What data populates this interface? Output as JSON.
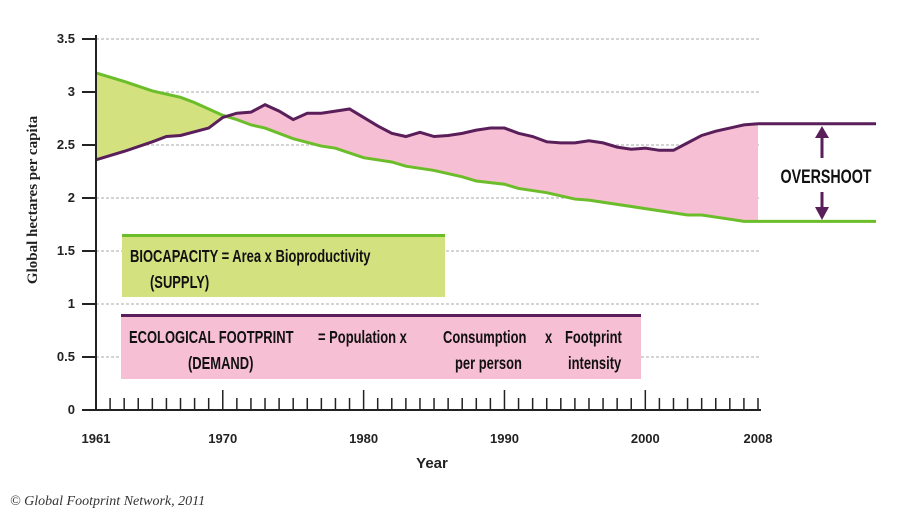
{
  "chart_data": {
    "type": "area",
    "xlabel": "Year",
    "ylabel": "Global hectares per capita",
    "xlim": [
      1961,
      2008
    ],
    "ylim": [
      0,
      3.5
    ],
    "x_tick_labels": [
      "1961",
      "1970",
      "1980",
      "1990",
      "2000",
      "2008"
    ],
    "y_tick_labels": [
      "0",
      "0.5",
      "1",
      "1.5",
      "2",
      "2.5",
      "3",
      "3.5"
    ],
    "grid": true,
    "colors": {
      "biocapacity_line": "#6cbd2a",
      "biocapacity_fill": "#d3e27f",
      "footprint_line": "#5a1f5a",
      "footprint_fill": "#f7bfd3"
    },
    "series": [
      {
        "name": "BIOCAPACITY",
        "x": [
          1961,
          1963,
          1965,
          1967,
          1968,
          1970,
          1971,
          1972,
          1973,
          1975,
          1977,
          1978,
          1980,
          1982,
          1983,
          1985,
          1987,
          1988,
          1990,
          1991,
          1993,
          1995,
          1996,
          1998,
          2000,
          2002,
          2003,
          2004,
          2006,
          2007,
          2008
        ],
        "values": [
          3.18,
          3.1,
          3.01,
          2.95,
          2.9,
          2.78,
          2.74,
          2.69,
          2.66,
          2.56,
          2.49,
          2.47,
          2.38,
          2.34,
          2.3,
          2.26,
          2.2,
          2.16,
          2.13,
          2.09,
          2.05,
          1.99,
          1.98,
          1.94,
          1.9,
          1.86,
          1.84,
          1.84,
          1.8,
          1.78,
          1.78
        ]
      },
      {
        "name": "ECOLOGICAL FOOTPRINT",
        "x": [
          1961,
          1963,
          1965,
          1966,
          1967,
          1969,
          1970,
          1971,
          1972,
          1973,
          1974,
          1975,
          1976,
          1977,
          1978,
          1979,
          1980,
          1981,
          1982,
          1983,
          1984,
          1985,
          1986,
          1987,
          1988,
          1989,
          1990,
          1991,
          1992,
          1993,
          1994,
          1995,
          1996,
          1997,
          1998,
          1999,
          2000,
          2001,
          2002,
          2003,
          2004,
          2005,
          2006,
          2007,
          2008
        ],
        "values": [
          2.36,
          2.44,
          2.53,
          2.58,
          2.59,
          2.66,
          2.76,
          2.8,
          2.81,
          2.88,
          2.82,
          2.74,
          2.8,
          2.8,
          2.82,
          2.84,
          2.76,
          2.68,
          2.61,
          2.58,
          2.62,
          2.58,
          2.59,
          2.61,
          2.64,
          2.66,
          2.66,
          2.61,
          2.58,
          2.53,
          2.52,
          2.52,
          2.54,
          2.52,
          2.48,
          2.46,
          2.47,
          2.45,
          2.45,
          2.52,
          2.59,
          2.63,
          2.66,
          2.69,
          2.7
        ]
      }
    ],
    "annotations": {
      "overshoot": "OVERSHOOT",
      "biocapacity_box": {
        "line1": "BIOCAPACITY = Area x Bioproductivity",
        "line2": "(SUPPLY)"
      },
      "footprint_box": {
        "line1a": "ECOLOGICAL FOOTPRINT",
        "eq": "= Population x",
        "line1b": "Consumption",
        "x2": "x",
        "line1c": "Footprint",
        "line2a": "(DEMAND)",
        "line2b": "per person",
        "line2c": "intensity"
      }
    }
  },
  "footnote": "© Global Footprint Network, 2011"
}
